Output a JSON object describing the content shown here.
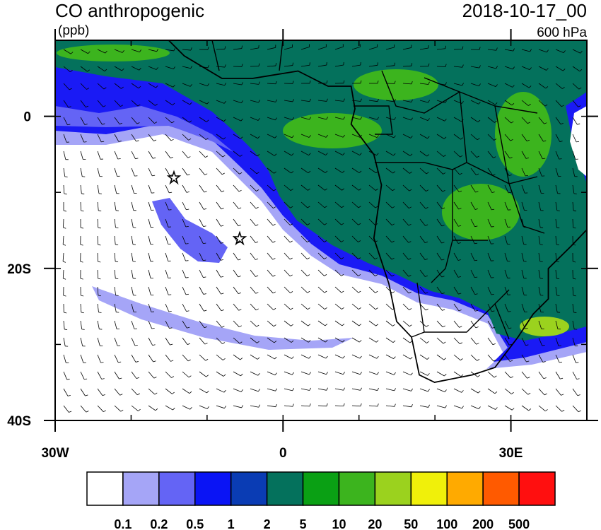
{
  "map": {
    "title": "CO anthropogenic",
    "units": "(ppb)",
    "date": "2018-10-17_00",
    "level": "600 hPa",
    "xlim": [
      -30,
      40
    ],
    "ylim": [
      -40,
      10
    ],
    "xticks": [
      {
        "value": -30,
        "label": "30W"
      },
      0,
      {
        "value": 30,
        "label": "30E"
      }
    ],
    "yticks": [
      0,
      {
        "value": -20,
        "label": "20S"
      },
      {
        "value": -40,
        "label": "40S"
      }
    ],
    "colorbar": {
      "colors": [
        "#ffffff",
        "#a5a5f7",
        "#6464f5",
        "#0a14f5",
        "#0a3cb4",
        "#04715c",
        "#0aa014",
        "#3cb41e",
        "#9bd21e",
        "#f0f00a",
        "#ffaa00",
        "#ff5a00",
        "#ff0f0f"
      ],
      "labels": [
        0.1,
        0.2,
        0.5,
        1,
        2,
        5,
        10,
        20,
        50,
        100,
        200,
        500
      ]
    }
  }
}
